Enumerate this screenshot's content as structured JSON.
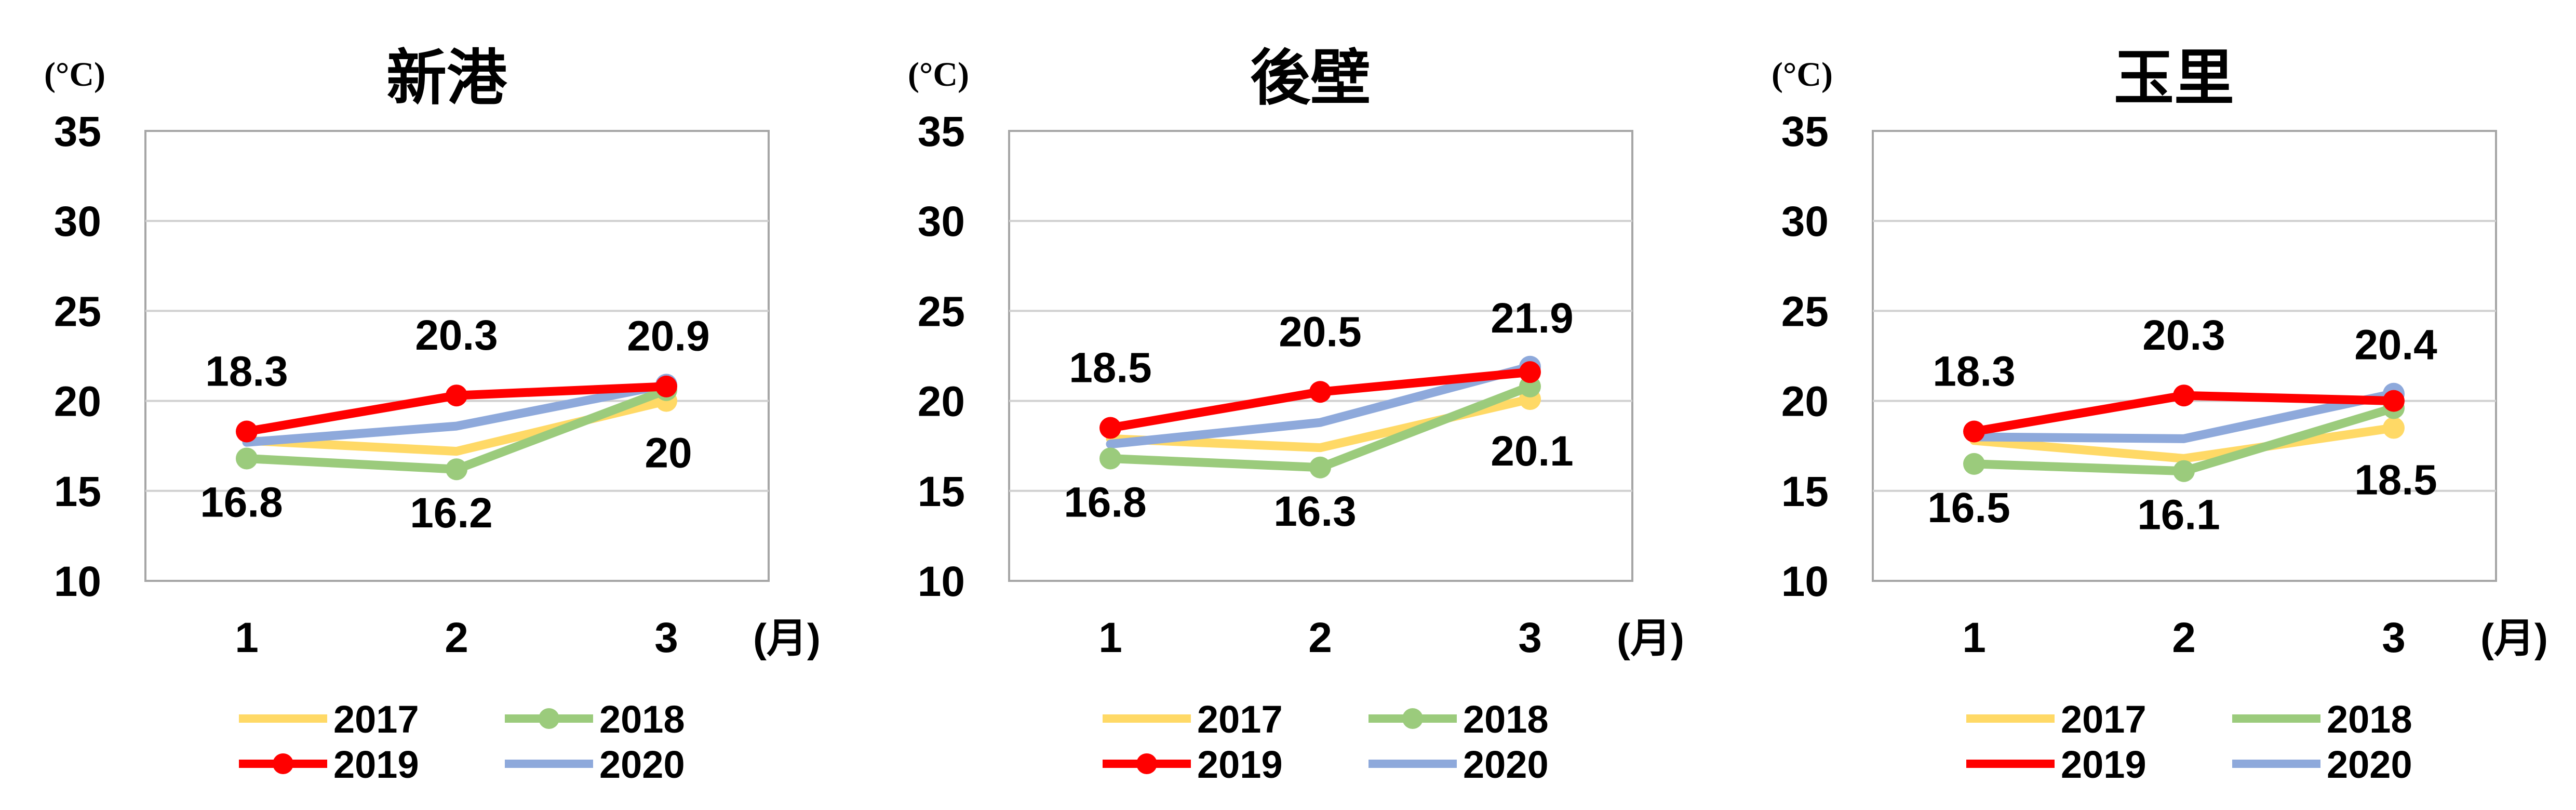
{
  "chart_data": [
    {
      "type": "line",
      "title": "新港",
      "yunit": "(°C)",
      "xunit": "(月)",
      "x": [
        "1",
        "2",
        "3"
      ],
      "ylim": [
        10,
        35
      ],
      "yticks": [
        "35",
        "30",
        "25",
        "20",
        "15",
        "10"
      ],
      "grid": true,
      "legend": "bottom",
      "series": [
        {
          "name": "2017",
          "color": "#FFD966",
          "values": [
            17.8,
            17.2,
            20.0
          ],
          "labels": [
            null,
            null,
            "20"
          ],
          "markers": false
        },
        {
          "name": "2018",
          "color": "#9BCB7C",
          "values": [
            16.8,
            16.2,
            20.6
          ],
          "labels": [
            "16.8",
            "16.2",
            null
          ],
          "markers": true
        },
        {
          "name": "2019",
          "color": "#FF0000",
          "values": [
            18.3,
            20.3,
            20.8
          ],
          "labels": [
            "18.3",
            "20.3",
            null
          ],
          "markers": true
        },
        {
          "name": "2020",
          "color": "#8EA9DB",
          "values": [
            17.7,
            18.6,
            20.9
          ],
          "labels": [
            null,
            null,
            "20.9"
          ],
          "markers": false,
          "end_marker": true
        }
      ]
    },
    {
      "type": "line",
      "title": "後壁",
      "yunit": "(°C)",
      "xunit": "(月)",
      "x": [
        "1",
        "2",
        "3"
      ],
      "ylim": [
        10,
        35
      ],
      "yticks": [
        "35",
        "30",
        "25",
        "20",
        "15",
        "10"
      ],
      "grid": true,
      "legend": "bottom",
      "series": [
        {
          "name": "2017",
          "color": "#FFD966",
          "values": [
            17.9,
            17.4,
            20.1
          ],
          "labels": [
            null,
            null,
            "20.1"
          ],
          "markers": false
        },
        {
          "name": "2018",
          "color": "#9BCB7C",
          "values": [
            16.8,
            16.3,
            20.8
          ],
          "labels": [
            "16.8",
            "16.3",
            null
          ],
          "markers": true
        },
        {
          "name": "2019",
          "color": "#FF0000",
          "values": [
            18.5,
            20.5,
            21.6
          ],
          "labels": [
            "18.5",
            "20.5",
            null
          ],
          "markers": true
        },
        {
          "name": "2020",
          "color": "#8EA9DB",
          "values": [
            17.6,
            18.8,
            21.9
          ],
          "labels": [
            null,
            null,
            "21.9"
          ],
          "markers": false,
          "end_marker": true
        }
      ]
    },
    {
      "type": "line",
      "title": "玉里",
      "yunit": "(°C)",
      "xunit": "(月)",
      "x": [
        "1",
        "2",
        "3"
      ],
      "ylim": [
        10,
        35
      ],
      "yticks": [
        "35",
        "30",
        "25",
        "20",
        "15",
        "10"
      ],
      "grid": true,
      "legend": "bottom",
      "series": [
        {
          "name": "2017",
          "color": "#FFD966",
          "values": [
            17.8,
            16.8,
            18.5
          ],
          "labels": [
            null,
            null,
            "18.5"
          ],
          "markers": false
        },
        {
          "name": "2018",
          "color": "#9BCB7C",
          "values": [
            16.5,
            16.1,
            19.6
          ],
          "labels": [
            "16.5",
            "16.1",
            null
          ],
          "markers": true
        },
        {
          "name": "2019",
          "color": "#FF0000",
          "values": [
            18.3,
            20.3,
            20.0
          ],
          "labels": [
            "18.3",
            "20.3",
            null
          ],
          "markers": true
        },
        {
          "name": "2020",
          "color": "#8EA9DB",
          "values": [
            18.0,
            17.9,
            20.4
          ],
          "labels": [
            null,
            null,
            "20.4"
          ],
          "markers": false,
          "end_marker": true
        }
      ]
    }
  ]
}
